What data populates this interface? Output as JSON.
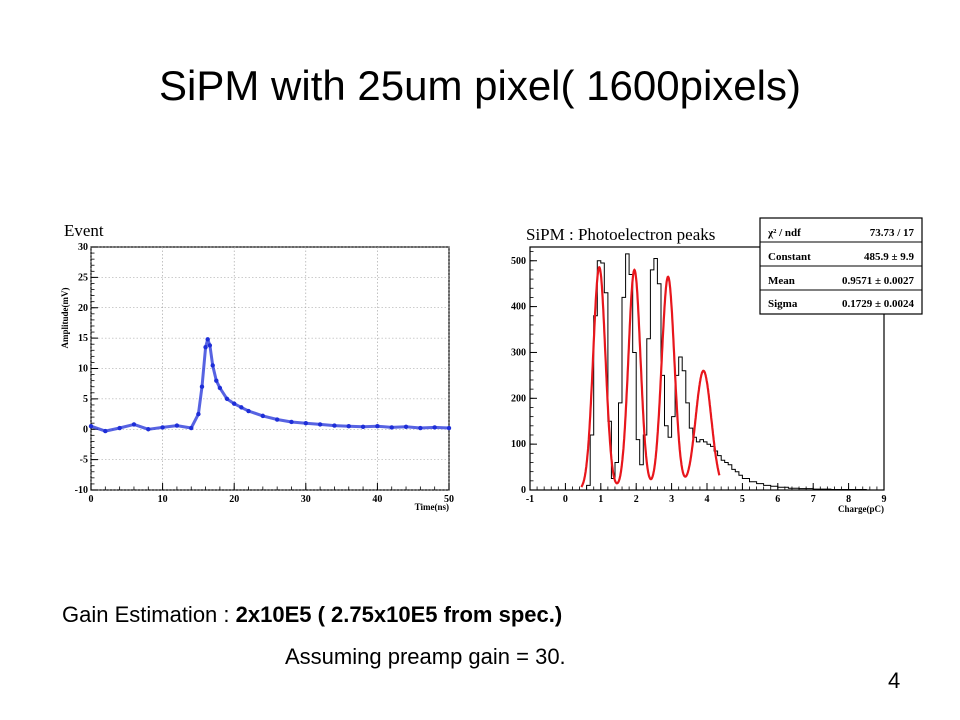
{
  "slide": {
    "title": "SiPM with 25um pixel( 1600pixels)",
    "gain_label": "Gain Estimation : ",
    "gain_value": "2x10E5 ( 2.75x10E5 from spec.)",
    "assumption": "Assuming preamp gain = 30.",
    "page_number": "4"
  },
  "colors": {
    "waveform": "#1f2fd8",
    "histogram": "#000000",
    "fit": "#e8161c",
    "grid": "#9a9a9a"
  },
  "chart_data": [
    {
      "type": "scatter",
      "title": "Event",
      "xlabel": "Time(ns)",
      "ylabel": "Amplitude(mV)",
      "xlim": [
        0,
        50
      ],
      "ylim": [
        -10,
        30
      ],
      "xticks": [
        0,
        10,
        20,
        30,
        40,
        50
      ],
      "yticks": [
        -10,
        -5,
        0,
        5,
        10,
        15,
        20,
        25,
        30
      ],
      "grid": true,
      "series": [
        {
          "x": [
            0,
            2,
            4,
            6,
            8,
            10,
            12,
            14,
            15,
            15.5,
            16,
            16.3,
            16.6,
            17,
            17.5,
            18,
            19,
            20,
            21,
            22,
            24,
            26,
            28,
            30,
            32,
            34,
            36,
            38,
            40,
            42,
            44,
            46,
            48,
            50
          ],
          "y": [
            0.5,
            -0.3,
            0.2,
            0.8,
            0.0,
            0.3,
            0.6,
            0.2,
            2.5,
            7.0,
            13.5,
            14.8,
            13.8,
            10.5,
            8.0,
            6.8,
            5.0,
            4.2,
            3.6,
            3.0,
            2.2,
            1.6,
            1.2,
            1.0,
            0.8,
            0.6,
            0.5,
            0.4,
            0.5,
            0.3,
            0.4,
            0.2,
            0.3,
            0.2
          ]
        }
      ]
    },
    {
      "type": "histogram",
      "title": "SiPM : Photoelectron peaks",
      "xlabel": "Charge(pC)",
      "ylabel": "",
      "xlim": [
        -1,
        9
      ],
      "ylim": [
        0,
        530
      ],
      "xticks": [
        -1,
        0,
        1,
        2,
        3,
        4,
        5,
        6,
        7,
        8,
        9
      ],
      "yticks": [
        0,
        100,
        200,
        300,
        400,
        500
      ],
      "grid": false,
      "histogram": {
        "x": [
          0.6,
          0.7,
          0.8,
          0.9,
          1.0,
          1.1,
          1.2,
          1.3,
          1.4,
          1.5,
          1.6,
          1.7,
          1.8,
          1.9,
          2.0,
          2.1,
          2.2,
          2.3,
          2.4,
          2.5,
          2.6,
          2.7,
          2.8,
          2.9,
          3.0,
          3.1,
          3.2,
          3.3,
          3.4,
          3.5,
          3.6,
          3.7,
          3.8,
          3.9,
          4.0,
          4.1,
          4.2,
          4.3,
          4.4,
          4.5,
          4.6,
          4.7,
          4.8,
          4.9,
          5.0,
          5.2,
          5.4,
          5.6,
          5.8,
          6.0,
          6.3,
          6.6,
          7.0,
          7.5,
          8.0,
          8.5
        ],
        "y": [
          10,
          120,
          380,
          500,
          495,
          430,
          150,
          25,
          60,
          190,
          420,
          515,
          470,
          300,
          110,
          55,
          120,
          330,
          480,
          505,
          450,
          250,
          140,
          115,
          160,
          250,
          290,
          260,
          190,
          135,
          115,
          105,
          110,
          105,
          100,
          95,
          85,
          75,
          65,
          60,
          55,
          45,
          40,
          32,
          25,
          18,
          14,
          10,
          8,
          6,
          4,
          3,
          2,
          1,
          1,
          0
        ]
      },
      "fit": {
        "name": "Photoelectron peak fit",
        "peaks": [
          {
            "mean": 0.9571,
            "sigma": 0.1729,
            "amplitude": 485.9
          },
          {
            "mean": 1.95,
            "sigma": 0.17,
            "amplitude": 480
          },
          {
            "mean": 2.9,
            "sigma": 0.18,
            "amplitude": 465
          },
          {
            "mean": 3.9,
            "sigma": 0.22,
            "amplitude": 260
          }
        ]
      },
      "stats_box": {
        "rows": [
          {
            "label": "χ² / ndf",
            "value": "73.73 / 17"
          },
          {
            "label": "Constant",
            "value": "485.9 ± 9.9"
          },
          {
            "label": "Mean",
            "value": "0.9571 ± 0.0027"
          },
          {
            "label": "Sigma",
            "value": "0.1729 ± 0.0024"
          }
        ]
      }
    }
  ]
}
